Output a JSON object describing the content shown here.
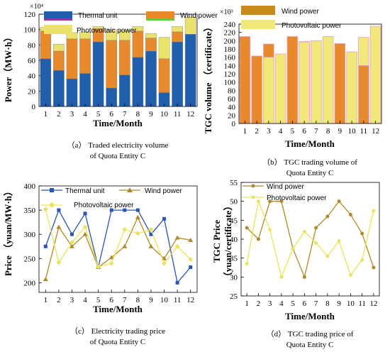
{
  "chart_data": [
    {
      "id": "a",
      "type": "bar",
      "stacked": true,
      "categories": [
        "1",
        "2",
        "3",
        "4",
        "5",
        "6",
        "7",
        "8",
        "9",
        "10",
        "11",
        "12"
      ],
      "series": [
        {
          "name": "Thermal unit",
          "color": "#1f5fad",
          "values": [
            62,
            47,
            36,
            43,
            84,
            24,
            41,
            64,
            72,
            18,
            84,
            94
          ]
        },
        {
          "name": "Wind power",
          "color": "#e8892b",
          "values": [
            36,
            25,
            52,
            45,
            17,
            62,
            45,
            34,
            17,
            44,
            13,
            0
          ]
        },
        {
          "name": "Photovoltaic power",
          "color": "#e9e36a",
          "values": [
            5,
            9,
            8,
            9,
            3,
            14,
            13,
            6,
            6,
            28,
            7,
            22
          ]
        }
      ],
      "ylabel": "Power（MW·h）",
      "xlabel": "Time/Month",
      "exponent": "×10⁴",
      "ylim": [
        0,
        120
      ],
      "yticks": [
        0,
        20,
        40,
        60,
        80,
        100,
        120
      ],
      "caption": [
        "（a） Traded electricity volume",
        "of Quota Entity C"
      ]
    },
    {
      "id": "b",
      "type": "bar",
      "categories": [
        "1",
        "2",
        "3",
        "4",
        "5",
        "6",
        "7",
        "8",
        "9",
        "10",
        "11",
        "12"
      ],
      "series": [
        {
          "name": "Wind power",
          "color": "#e8892b",
          "values": [
            210,
            163,
            192,
            null,
            210,
            198,
            null,
            null,
            193,
            null,
            140,
            null
          ]
        },
        {
          "name": "Photovoltaic power",
          "color": "#f1e87a",
          "values": [
            null,
            null,
            160,
            168,
            null,
            197,
            200,
            210,
            null,
            173,
            208,
            235
          ]
        }
      ],
      "ylabel": "TGC volume （certificate）",
      "xlabel": "Time/Month",
      "exponent": "×10³",
      "ylim": [
        0,
        240
      ],
      "yticks": [
        0,
        20,
        40,
        60,
        80,
        100,
        120,
        140,
        160,
        180,
        200,
        220,
        240
      ],
      "caption": [
        "（b） TGC trading volume of",
        "Quota Entity C"
      ]
    },
    {
      "id": "c",
      "type": "line",
      "x": [
        1,
        2,
        3,
        4,
        5,
        6,
        7,
        8,
        9,
        10,
        11,
        12
      ],
      "series": [
        {
          "name": "Thermal unit",
          "color": "#2b55b3",
          "marker": "square",
          "values": [
            275,
            350,
            300,
            343,
            232,
            350,
            350,
            350,
            300,
            332,
            200,
            232
          ]
        },
        {
          "name": "Wind power",
          "color": "#b08a2a",
          "marker": "triangle",
          "values": [
            207,
            315,
            275,
            300,
            232,
            252,
            275,
            335,
            275,
            250,
            293,
            288
          ]
        },
        {
          "name": "Photovoltaic power",
          "color": "#eae35f",
          "marker": "diamond",
          "values": [
            352,
            242,
            283,
            315,
            233,
            240,
            310,
            302,
            310,
            240,
            275,
            248
          ]
        }
      ],
      "ylabel": "Price （yuan/MW·h）",
      "xlabel": "Time/Month",
      "ylim": [
        180,
        400
      ],
      "yticks": [
        200,
        250,
        300,
        350,
        400
      ],
      "caption": [
        "（c） Electricity trading price",
        "of Quota Entity C"
      ]
    },
    {
      "id": "d",
      "type": "line",
      "x": [
        1,
        2,
        3,
        4,
        5,
        6,
        7,
        8,
        9,
        10,
        11,
        12
      ],
      "series": [
        {
          "name": "Wind power",
          "color": "#b08a2a",
          "marker": "circle",
          "values": [
            43,
            40,
            50,
            50,
            37.5,
            30,
            43,
            46,
            50,
            46.5,
            41.5,
            32.5
          ]
        },
        {
          "name": "Photovoltaic power",
          "color": "#eae35f",
          "marker": "circle",
          "values": [
            33.5,
            50,
            42.5,
            30,
            37.5,
            42,
            39,
            35.5,
            39.5,
            30.5,
            34.5,
            47.5
          ]
        }
      ],
      "ylabel": "TGC Price",
      "ylabel2": "（yuan/certificate）",
      "xlabel": "Time/Month",
      "ylim": [
        25,
        55
      ],
      "yticks": [
        25,
        30,
        35,
        40,
        45,
        50,
        55
      ],
      "caption": [
        "（d） TGC trading price of",
        "Quota Entity C"
      ]
    }
  ]
}
